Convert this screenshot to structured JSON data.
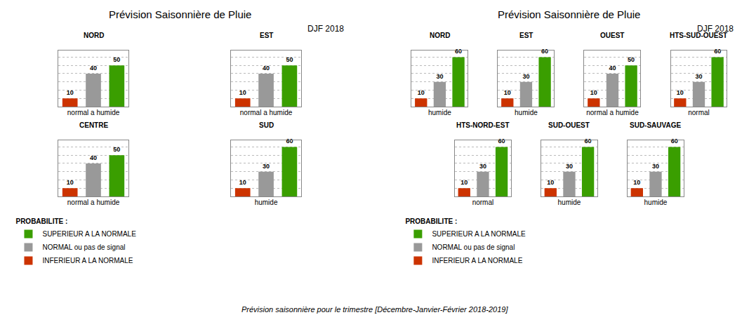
{
  "chart_data": [
    {
      "type": "bar",
      "title": "Prévision Saisonnière de Pluie",
      "subtitle": "DJF 2018",
      "categories": [
        "NORD",
        "EST",
        "CENTRE",
        "SUD"
      ],
      "xlabels": [
        "normal a humide",
        "normal a humide",
        "normal a humide",
        "humide"
      ],
      "series": [
        {
          "name": "INFERIEUR A LA NORMALE",
          "color": "#cc3300",
          "values": [
            10,
            10,
            10,
            10
          ]
        },
        {
          "name": "NORMAL ou pas de signal",
          "color": "#999999",
          "values": [
            40,
            40,
            40,
            30
          ]
        },
        {
          "name": "SUPERIEUR A LA NORMALE",
          "color": "#3a9e00",
          "values": [
            50,
            50,
            50,
            60
          ]
        }
      ],
      "ylim": [
        0,
        68
      ],
      "yticks": [
        10,
        20,
        30,
        40,
        50,
        60
      ],
      "grid": true,
      "tick_labels": false,
      "data_labels": true,
      "legend": "bottom left",
      "legend_title": "PROBABILITE :"
    },
    {
      "type": "bar",
      "title": "Prévision Saisonnière de Pluie",
      "subtitle": "DJF 2018",
      "categories": [
        "NORD",
        "EST",
        "OUEST",
        "HTS-SUD-OUEST",
        "HTS-NORD-EST",
        "SUD-OUEST",
        "SUD-SAUVAGE"
      ],
      "xlabels": [
        "humide",
        "humide",
        "normal a humide",
        "normal",
        "normal",
        "humide",
        "humide"
      ],
      "series": [
        {
          "name": "INFERIEUR A LA NORMALE",
          "color": "#cc3300",
          "values": [
            10,
            10,
            10,
            10,
            10,
            10,
            10
          ]
        },
        {
          "name": "NORMAL ou pas de signal",
          "color": "#999999",
          "values": [
            30,
            30,
            40,
            30,
            30,
            30,
            30
          ]
        },
        {
          "name": "SUPERIEUR A LA NORMALE",
          "color": "#3a9e00",
          "values": [
            60,
            60,
            50,
            60,
            60,
            60,
            60
          ]
        }
      ],
      "ylim": [
        0,
        68
      ],
      "yticks": [
        10,
        20,
        30,
        40,
        50,
        60
      ],
      "grid": true,
      "tick_labels": false,
      "data_labels": true,
      "legend": "bottom left",
      "legend_title": "PROBABILITE :"
    }
  ],
  "footer": "Prévision saisonnière pour le trimestre [Décembre-Janvier-Février 2018-2019]"
}
